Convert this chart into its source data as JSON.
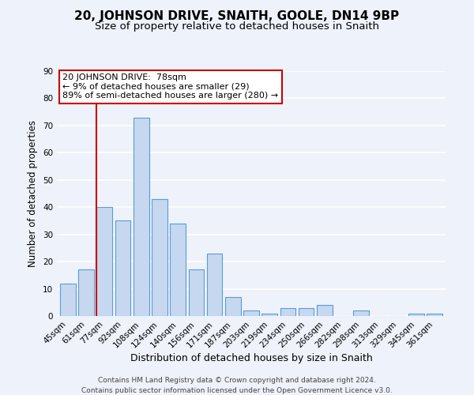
{
  "title": "20, JOHNSON DRIVE, SNAITH, GOOLE, DN14 9BP",
  "subtitle": "Size of property relative to detached houses in Snaith",
  "xlabel": "Distribution of detached houses by size in Snaith",
  "ylabel": "Number of detached properties",
  "categories": [
    "45sqm",
    "61sqm",
    "77sqm",
    "92sqm",
    "108sqm",
    "124sqm",
    "140sqm",
    "156sqm",
    "171sqm",
    "187sqm",
    "203sqm",
    "219sqm",
    "234sqm",
    "250sqm",
    "266sqm",
    "282sqm",
    "298sqm",
    "313sqm",
    "329sqm",
    "345sqm",
    "361sqm"
  ],
  "values": [
    12,
    17,
    40,
    35,
    73,
    43,
    34,
    17,
    23,
    7,
    2,
    1,
    3,
    3,
    4,
    0,
    2,
    0,
    0,
    1,
    1
  ],
  "bar_color": "#c5d8f0",
  "bar_edge_color": "#5b9bd5",
  "red_line_index": 2,
  "ann_line1": "20 JOHNSON DRIVE:  78sqm",
  "ann_line2": "← 9% of detached houses are smaller (29)",
  "ann_line3": "89% of semi-detached houses are larger (280) →",
  "ylim": [
    0,
    90
  ],
  "yticks": [
    0,
    10,
    20,
    30,
    40,
    50,
    60,
    70,
    80,
    90
  ],
  "annotation_box_color": "#ffffff",
  "annotation_box_edge": "#cc0000",
  "footer1": "Contains HM Land Registry data © Crown copyright and database right 2024.",
  "footer2": "Contains public sector information licensed under the Open Government Licence v3.0.",
  "background_color": "#eef2fa",
  "grid_color": "#ffffff",
  "title_fontsize": 11,
  "subtitle_fontsize": 9.5,
  "xlabel_fontsize": 9,
  "ylabel_fontsize": 8.5,
  "tick_fontsize": 7.5,
  "footer_fontsize": 6.5,
  "ann_fontsize": 8.0
}
